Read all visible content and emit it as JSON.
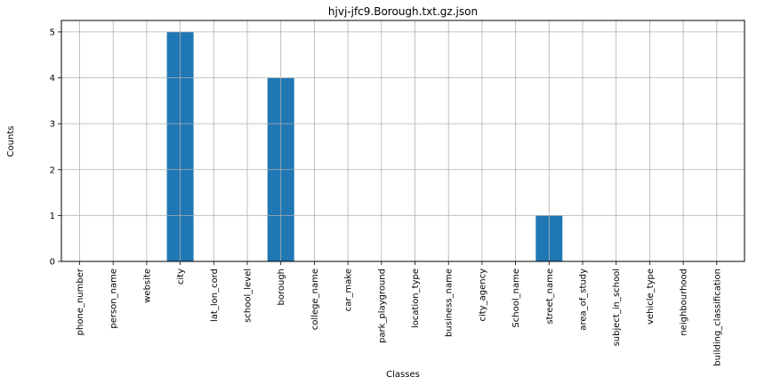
{
  "chart_data": {
    "type": "bar",
    "title": "hjvj-jfc9.Borough.txt.gz.json",
    "xlabel": "Classes",
    "ylabel": "Counts",
    "categories": [
      "phone_number",
      "person_name",
      "website",
      "city",
      "lat_lon_cord",
      "school_level",
      "borough",
      "college_name",
      "car_make",
      "park_playground",
      "location_type",
      "business_name",
      "city_agency",
      "School_name",
      "street_name",
      "area_of_study",
      "subject_in_school",
      "vehicle_type",
      "neighbourhood",
      "building_classification"
    ],
    "values": [
      0,
      0,
      0,
      5,
      0,
      0,
      4,
      0,
      0,
      0,
      0,
      0,
      0,
      0,
      1,
      0,
      0,
      0,
      0,
      0
    ],
    "ylim": [
      0,
      5.25
    ],
    "yticks": [
      0,
      1,
      2,
      3,
      4,
      5
    ],
    "grid": true,
    "bar_color": "#1f77b4",
    "grid_color": "#b0b0b0"
  }
}
